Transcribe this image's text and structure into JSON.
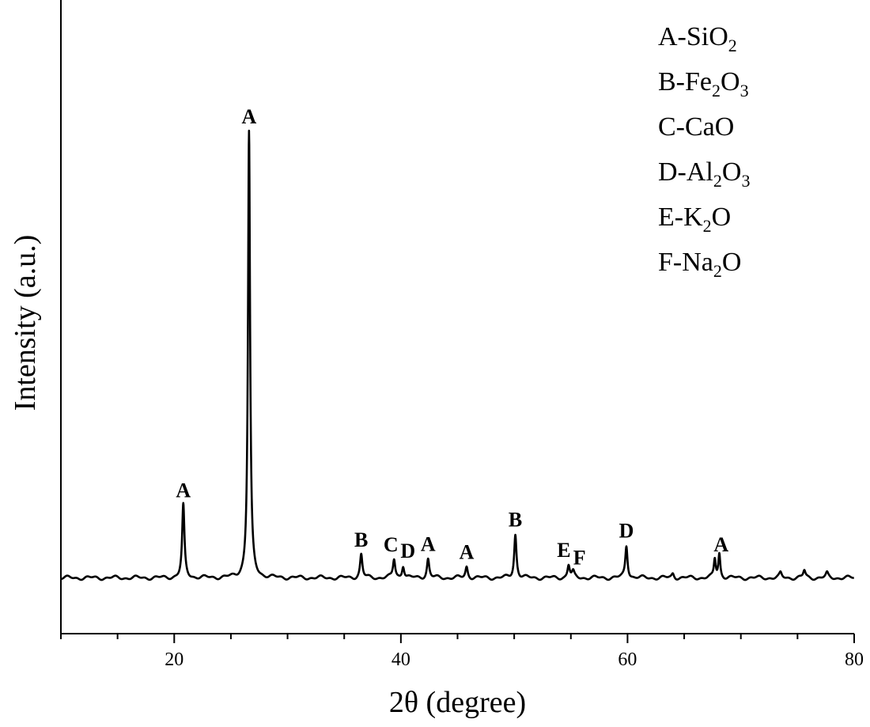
{
  "chart_data": {
    "type": "line",
    "xlabel": "2θ (degree)",
    "ylabel": "Intensity (a.u.)",
    "xlim": [
      10,
      80
    ],
    "ylim": [
      0,
      105
    ],
    "xticks": [
      20,
      40,
      60,
      80
    ],
    "grid": false,
    "legend_position": "top-right",
    "baseline": 10,
    "legend": [
      {
        "letter": "A",
        "text": "A-SiO",
        "sub": "2",
        "tail": ""
      },
      {
        "letter": "B",
        "text": "B-Fe",
        "sub": "2",
        "tail": "O",
        "sub2": "3"
      },
      {
        "letter": "C",
        "text": "C-CaO",
        "sub": "",
        "tail": ""
      },
      {
        "letter": "D",
        "text": "D-Al",
        "sub": "2",
        "tail": "O",
        "sub2": "3"
      },
      {
        "letter": "E",
        "text": "E-K",
        "sub": "2",
        "tail": "O"
      },
      {
        "letter": "F",
        "text": "F-Na",
        "sub": "2",
        "tail": "O"
      }
    ],
    "peaks": [
      {
        "x": 20.8,
        "y": 23.0,
        "w": 0.12,
        "label": "A"
      },
      {
        "x": 26.6,
        "y": 90.0,
        "w": 0.11,
        "label": "A"
      },
      {
        "x": 36.5,
        "y": 14.2,
        "w": 0.12,
        "label": "B"
      },
      {
        "x": 39.4,
        "y": 13.3,
        "w": 0.12,
        "label": "C"
      },
      {
        "x": 40.2,
        "y": 12.2,
        "w": 0.12,
        "label": "D"
      },
      {
        "x": 42.4,
        "y": 13.4,
        "w": 0.12,
        "label": "A"
      },
      {
        "x": 45.8,
        "y": 12.0,
        "w": 0.12,
        "label": "A"
      },
      {
        "x": 50.1,
        "y": 17.8,
        "w": 0.12,
        "label": "B"
      },
      {
        "x": 54.8,
        "y": 12.3,
        "w": 0.12,
        "label": "E"
      },
      {
        "x": 55.2,
        "y": 11.0,
        "w": 0.12,
        "label": "F"
      },
      {
        "x": 59.9,
        "y": 15.8,
        "w": 0.12,
        "label": "D"
      },
      {
        "x": 64.0,
        "y": 10.8,
        "w": 0.12,
        "label": ""
      },
      {
        "x": 67.7,
        "y": 13.3,
        "w": 0.1,
        "label": "A"
      },
      {
        "x": 68.1,
        "y": 14.3,
        "w": 0.1,
        "label": ""
      },
      {
        "x": 73.5,
        "y": 10.8,
        "w": 0.12,
        "label": ""
      },
      {
        "x": 75.6,
        "y": 11.3,
        "w": 0.12,
        "label": ""
      },
      {
        "x": 77.6,
        "y": 10.8,
        "w": 0.12,
        "label": ""
      }
    ]
  }
}
